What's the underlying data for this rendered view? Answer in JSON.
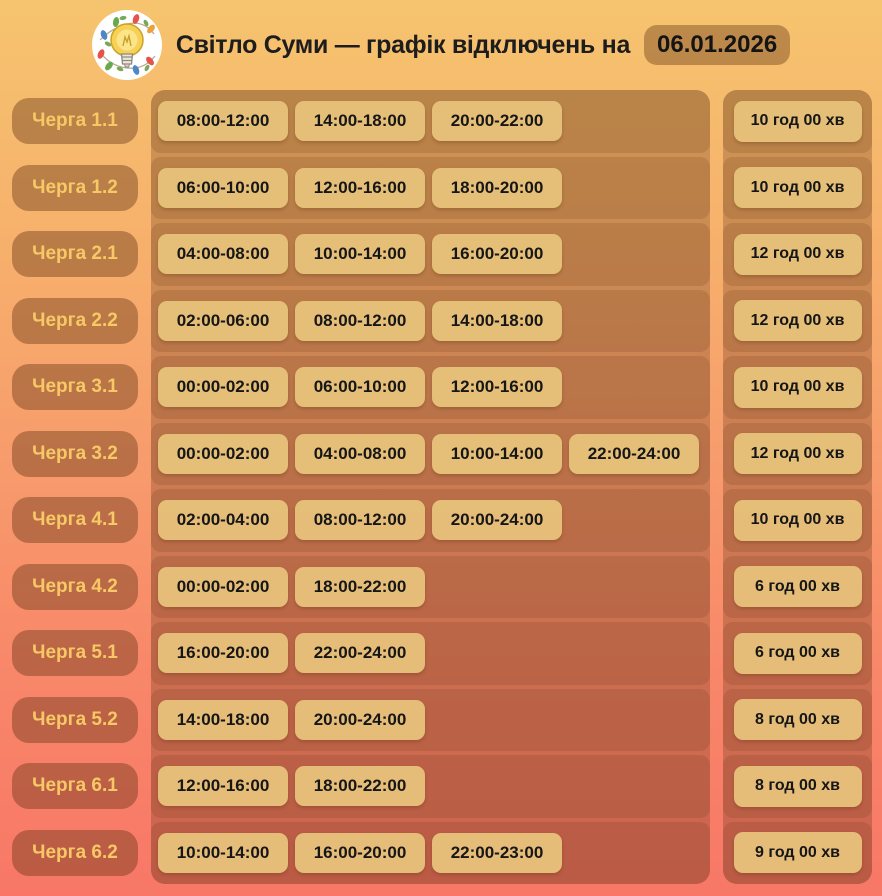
{
  "header": {
    "title": "Світло Суми — графік відключень на",
    "date": "06.01.2026",
    "logo_icon": "lightbulb-with-garland-icon"
  },
  "colors": {
    "background_top": "#f6c46e",
    "background_middle": "#f79b6c",
    "background_bottom": "#f87767",
    "panel_overlay_brown": "#b2905a",
    "chip_fill": "#e8c47d",
    "queue_label_text": "#f7c966",
    "text_dark": "#161616"
  },
  "chart_data": {
    "type": "table",
    "title": "Світло Суми — графік відключень на 06.01.2026",
    "date": "06.01.2026",
    "rows": [
      {
        "queue": "Черга 1.1",
        "slots": [
          "08:00-12:00",
          "14:00-18:00",
          "20:00-22:00"
        ],
        "total": "10 год 00 хв"
      },
      {
        "queue": "Черга 1.2",
        "slots": [
          "06:00-10:00",
          "12:00-16:00",
          "18:00-20:00"
        ],
        "total": "10 год 00 хв"
      },
      {
        "queue": "Черга 2.1",
        "slots": [
          "04:00-08:00",
          "10:00-14:00",
          "16:00-20:00"
        ],
        "total": "12 год 00 хв"
      },
      {
        "queue": "Черга 2.2",
        "slots": [
          "02:00-06:00",
          "08:00-12:00",
          "14:00-18:00"
        ],
        "total": "12 год 00 хв"
      },
      {
        "queue": "Черга 3.1",
        "slots": [
          "00:00-02:00",
          "06:00-10:00",
          "12:00-16:00"
        ],
        "total": "10 год 00 хв"
      },
      {
        "queue": "Черга 3.2",
        "slots": [
          "00:00-02:00",
          "04:00-08:00",
          "10:00-14:00",
          "22:00-24:00"
        ],
        "total": "12 год 00 хв"
      },
      {
        "queue": "Черга 4.1",
        "slots": [
          "02:00-04:00",
          "08:00-12:00",
          "20:00-24:00"
        ],
        "total": "10 год 00 хв"
      },
      {
        "queue": "Черга 4.2",
        "slots": [
          "00:00-02:00",
          "18:00-22:00"
        ],
        "total": "6 год 00 хв"
      },
      {
        "queue": "Черга 5.1",
        "slots": [
          "16:00-20:00",
          "22:00-24:00"
        ],
        "total": "6 год 00 хв"
      },
      {
        "queue": "Черга 5.2",
        "slots": [
          "14:00-18:00",
          "20:00-24:00"
        ],
        "total": "8 год 00 хв"
      },
      {
        "queue": "Черга 6.1",
        "slots": [
          "12:00-16:00",
          "18:00-22:00"
        ],
        "total": "8 год 00 хв"
      },
      {
        "queue": "Черга 6.2",
        "slots": [
          "10:00-14:00",
          "16:00-20:00",
          "22:00-23:00"
        ],
        "total": "9 год 00 хв"
      }
    ]
  }
}
